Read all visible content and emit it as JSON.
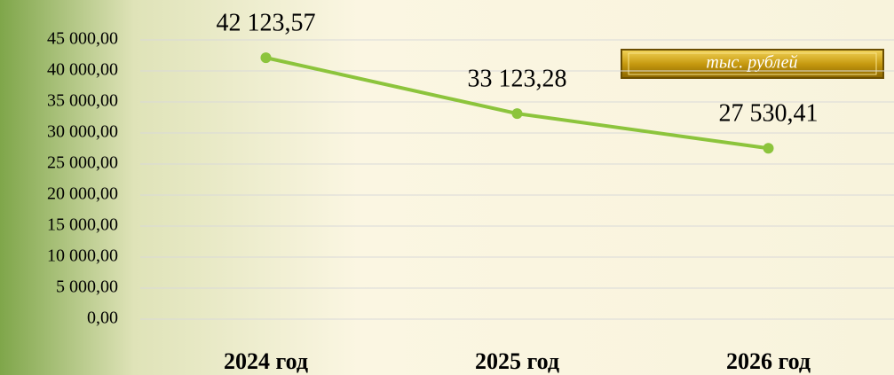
{
  "chart_data": {
    "type": "line",
    "categories": [
      "2024 год",
      "2025 год",
      "2026 год"
    ],
    "values": [
      42123.57,
      33123.28,
      27530.41
    ],
    "value_labels": [
      "42 123,57",
      "33 123,28",
      "27 530,41"
    ],
    "color": "#8cc43c",
    "unit_label": "тыс. рублей",
    "ylim": [
      0,
      45000
    ],
    "yticks": [
      {
        "value": 0,
        "label": "0,00"
      },
      {
        "value": 5000,
        "label": "5 000,00"
      },
      {
        "value": 10000,
        "label": "10 000,00"
      },
      {
        "value": 15000,
        "label": "15 000,00"
      },
      {
        "value": 20000,
        "label": "20 000,00"
      },
      {
        "value": 25000,
        "label": "25 000,00"
      },
      {
        "value": 30000,
        "label": "30 000,00"
      },
      {
        "value": 35000,
        "label": "35 000,00"
      },
      {
        "value": 40000,
        "label": "40 000,00"
      },
      {
        "value": 45000,
        "label": "45 000,00"
      }
    ],
    "grid": true
  }
}
